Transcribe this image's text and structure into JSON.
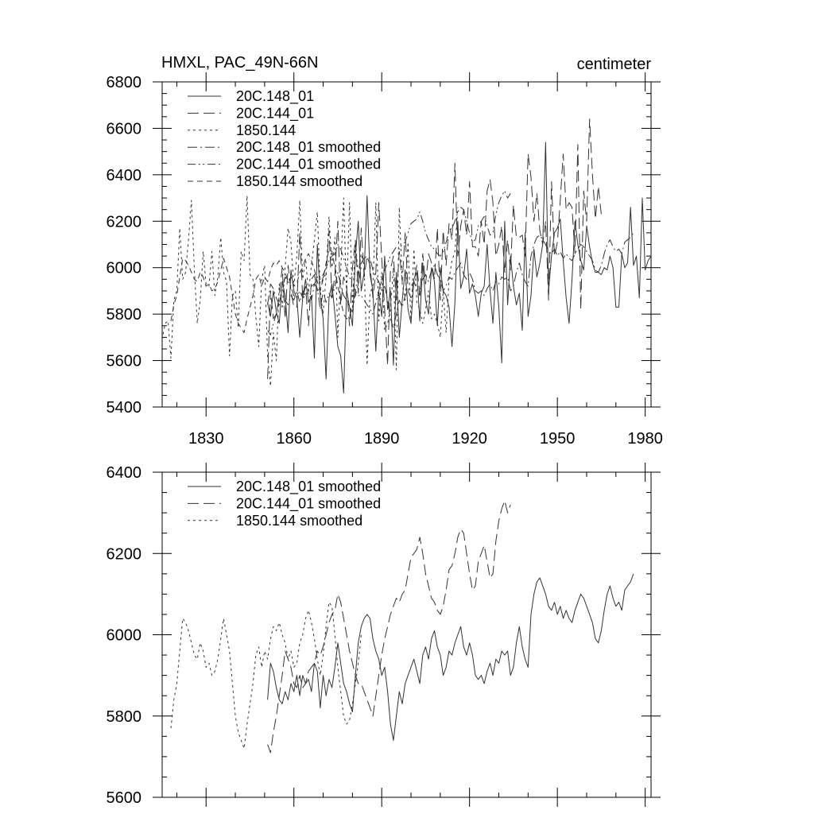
{
  "chart_data": [
    {
      "type": "line",
      "title_left": "HMXL, PAC_49N-66N",
      "title_right": "centimeter",
      "xlim": [
        1815,
        1982
      ],
      "ylim": [
        5400,
        6800
      ],
      "x_ticks": [
        1830,
        1860,
        1890,
        1920,
        1950,
        1980
      ],
      "x_tick_labels": [
        "1830",
        "1860",
        "1890",
        "1920",
        "1950",
        "1980"
      ],
      "x_minor_step": 10,
      "y_ticks": [
        5400,
        5600,
        5800,
        6000,
        6200,
        6400,
        6600,
        6800
      ],
      "y_tick_labels": [
        "5400",
        "5600",
        "5800",
        "6000",
        "6200",
        "6400",
        "6600",
        "6800"
      ],
      "y_minor_step": 50,
      "series": [
        {
          "name": "20C.148_01",
          "dash": "solid",
          "x_start": 1851,
          "values": [
            5850,
            5790,
            5900,
            5810,
            5760,
            5940,
            5880,
            5720,
            5990,
            5900,
            5870,
            5700,
            5870,
            5950,
            5850,
            5880,
            5610,
            6100,
            5870,
            5780,
            5520,
            5870,
            5930,
            5800,
            5660,
            5620,
            5460,
            5900,
            5830,
            5750,
            6050,
            6200,
            5900,
            5980,
            6310,
            5970,
            5900,
            5640,
            5900,
            5790,
            6050,
            5820,
            5900,
            5580,
            5980,
            5700,
            5860,
            5990,
            5820,
            5760,
            5950,
            5980,
            5770,
            6020,
            5860,
            5800,
            6000,
            5940,
            5750,
            6000,
            5900,
            5880,
            5830,
            5660,
            5850,
            6200,
            5910,
            5960,
            6080,
            5890,
            5930,
            5880,
            5790,
            5890,
            5920,
            6100,
            5900,
            5760,
            5980,
            5830,
            5590,
            6200,
            5840,
            6050,
            5920,
            5840,
            5890,
            5730,
            6150,
            5790,
            5880,
            6080,
            5960,
            6020,
            6100,
            6540,
            5900,
            6050,
            6150,
            6170,
            6210,
            6030,
            5870,
            5760,
            5950,
            6200,
            6100,
            6030,
            5990,
            6180,
            6090,
            6020,
            5980,
            5980,
            5970,
            6000,
            5990,
            6050,
            6000,
            5830,
            5830,
            6060,
            6000,
            6020,
            6260,
            6010,
            6050,
            5870,
            6300,
            5990,
            6030,
            6050,
            6310,
            6250
          ]
        },
        {
          "name": "20C.144_01",
          "dash": "long",
          "x_start": 1851,
          "values": [
            5520,
            5900,
            5780,
            5800,
            5880,
            6000,
            5780,
            6010,
            5900,
            5830,
            5830,
            6150,
            5870,
            5920,
            5750,
            5950,
            5970,
            5900,
            5910,
            5960,
            5970,
            6160,
            5870,
            5970,
            6200,
            5840,
            5960,
            5920,
            5750,
            6000,
            6120,
            5890,
            6170,
            5960,
            6050,
            6010,
            5870,
            5980,
            6280,
            6040,
            5820,
            5580,
            5990,
            6050,
            5860,
            6070,
            5940,
            6150,
            5900,
            5870,
            5940,
            6010,
            5880,
            6060,
            5930,
            6060,
            6020,
            5950,
            6170,
            5860,
            6160,
            6010,
            6190,
            6120,
            6450,
            6050,
            6180,
            6250,
            6140,
            6370,
            6090,
            6090,
            6050,
            6200,
            6100,
            6330,
            6380,
            6280,
            6050,
            6100,
            6180,
            5980,
            6120,
            5990,
            6270,
            6130,
            6130,
            6140,
            6050,
            6490,
            6390,
            6200,
            6320,
            6160,
            6100,
            6200,
            5860,
            6370,
            6050,
            6110,
            6290,
            6490,
            6250,
            6280,
            6260,
            6060,
            6530,
            5820,
            6330,
            6200,
            6640,
            6400,
            6210,
            6350,
            6230
          ]
        },
        {
          "name": "1850.144",
          "dash": "dot",
          "x_start": 1815,
          "values": [
            5690,
            5760,
            5770,
            5610,
            5860,
            5900,
            6170,
            5950,
            5980,
            6120,
            6290,
            5990,
            5760,
            5860,
            6070,
            5930,
            5920,
            6070,
            5880,
            5960,
            6130,
            5980,
            5940,
            5620,
            5880,
            5900,
            5740,
            6070,
            6030,
            6310,
            5970,
            5950,
            5790,
            5660,
            5950,
            6010,
            5620,
            5490,
            5720,
            5600,
            5930,
            5830,
            6000,
            6170,
            6110,
            5920,
            6050,
            6290,
            5950,
            6040,
            5890,
            6010,
            6120,
            6240,
            5900,
            5800,
            5960,
            6220,
            6000,
            6130,
            5700,
            5980,
            6300,
            5880,
            6280,
            5830,
            6110,
            5970,
            6060,
            6010,
            5580,
            5890,
            5920,
            6280,
            5770,
            5980,
            5730,
            5760,
            5820,
            6000,
            5560,
            6260,
            5930,
            5860,
            6110,
            5760,
            6080,
            5850,
            5820,
            5760,
            5820,
            5900,
            5780,
            5800,
            5760,
            5700,
            5900,
            5720,
            5950,
            6030,
            6070,
            6260
          ]
        },
        {
          "name": "20C.148_01 smoothed",
          "dash": "dashdot",
          "source": "20C.148_01 smoothed"
        },
        {
          "name": "20C.144_01 smoothed",
          "dash": "dashdotdot",
          "source": "20C.144_01 smoothed"
        },
        {
          "name": "1850.144 smoothed",
          "dash": "medium",
          "source": "1850.144 smoothed"
        }
      ]
    },
    {
      "type": "line",
      "xlim": [
        1815,
        1982
      ],
      "ylim": [
        5600,
        6400
      ],
      "x_ticks": [
        1830,
        1860,
        1890,
        1920,
        1950,
        1980
      ],
      "x_minor_step": 10,
      "y_ticks": [
        5600,
        5800,
        6000,
        6200,
        6400
      ],
      "y_tick_labels": [
        "5600",
        "5800",
        "6000",
        "6200",
        "6400"
      ],
      "y_minor_step": 50,
      "series": [
        {
          "name": "20C.148_01 smoothed",
          "dash": "solid",
          "x_start": 1851,
          "values": [
            5840,
            5930,
            5910,
            5870,
            5840,
            5830,
            5860,
            5840,
            5880,
            5860,
            5900,
            5850,
            5900,
            5880,
            5890,
            5860,
            5930,
            5910,
            5820,
            5900,
            5850,
            5890,
            5870,
            5920,
            5980,
            5930,
            5880,
            5860,
            5830,
            5810,
            5900,
            5980,
            6020,
            6040,
            6050,
            6040,
            5990,
            5960,
            5940,
            5900,
            5920,
            5860,
            5780,
            5740,
            5800,
            5860,
            5830,
            5880,
            5900,
            5920,
            5940,
            5910,
            5880,
            5950,
            5970,
            5940,
            5990,
            6010,
            5970,
            5950,
            5900,
            5920,
            5960,
            5950,
            5980,
            6000,
            6020,
            5970,
            5950,
            5980,
            5950,
            5900,
            5890,
            5900,
            5880,
            5910,
            5930,
            5900,
            5940,
            5930,
            5960,
            5950,
            5960,
            5900,
            5920,
            5980,
            6020,
            5970,
            5940,
            5920,
            6050,
            6100,
            6130,
            6140,
            6120,
            6100,
            6070,
            6060,
            6080,
            6050,
            6070,
            6040,
            6060,
            6040,
            6030,
            6060,
            6080,
            6100,
            6090,
            6070,
            6050,
            6030,
            5990,
            5980,
            6010,
            6060,
            6100,
            6120,
            6090,
            6070,
            6080,
            6060,
            6110,
            6120,
            6130,
            6150
          ]
        },
        {
          "name": "20C.144_01 smoothed",
          "dash": "long",
          "x_start": 1851,
          "values": [
            5730,
            5710,
            5760,
            5800,
            5850,
            5900,
            5960,
            5940,
            5920,
            5880,
            5870,
            5900,
            5870,
            5880,
            5910,
            5920,
            5930,
            5960,
            5950,
            5970,
            6000,
            6030,
            6050,
            6060,
            6100,
            6080,
            6040,
            6000,
            5960,
            5930,
            5900,
            5880,
            5880,
            5860,
            5840,
            5820,
            5800,
            5850,
            5900,
            5950,
            5990,
            6020,
            6050,
            6070,
            6090,
            6080,
            6100,
            6110,
            6150,
            6190,
            6200,
            6210,
            6240,
            6200,
            6150,
            6120,
            6090,
            6080,
            6060,
            6050,
            6070,
            6110,
            6160,
            6170,
            6200,
            6240,
            6260,
            6250,
            6200,
            6150,
            6110,
            6120,
            6180,
            6200,
            6220,
            6180,
            6140,
            6150,
            6230,
            6280,
            6310,
            6330,
            6300,
            6320
          ]
        },
        {
          "name": "1850.144 smoothed",
          "dash": "dot",
          "x_start": 1818,
          "values": [
            5770,
            5840,
            5880,
            5960,
            6040,
            6030,
            6010,
            5980,
            5950,
            5940,
            5980,
            5960,
            5920,
            5930,
            5900,
            5910,
            5940,
            5990,
            6040,
            6000,
            5960,
            5880,
            5800,
            5760,
            5740,
            5720,
            5780,
            5830,
            5880,
            5950,
            5970,
            5920,
            5960,
            5940,
            5990,
            6020,
            6010,
            6030,
            6000,
            5980,
            5940,
            5960,
            5920,
            5930,
            5980,
            6000,
            6040,
            6060,
            6030,
            5990,
            5940,
            5900,
            5950,
            6020,
            6080,
            6070,
            6000,
            5920,
            5860,
            5800,
            5780,
            5790,
            5830,
            5880,
            5930,
            6000
          ]
        }
      ]
    }
  ],
  "legend_top": [
    {
      "label": "20C.148_01",
      "dash": "solid"
    },
    {
      "label": "20C.144_01",
      "dash": "long"
    },
    {
      "label": "1850.144",
      "dash": "dot"
    },
    {
      "label": "20C.148_01 smoothed",
      "dash": "dashdot"
    },
    {
      "label": "20C.144_01 smoothed",
      "dash": "dashdotdot"
    },
    {
      "label": "1850.144 smoothed",
      "dash": "medium"
    }
  ],
  "legend_bottom": [
    {
      "label": "20C.148_01 smoothed",
      "dash": "solid"
    },
    {
      "label": "20C.144_01 smoothed",
      "dash": "long"
    },
    {
      "label": "1850.144 smoothed",
      "dash": "dot"
    }
  ],
  "colors": {
    "line": "#333333",
    "axis": "#000000",
    "background": "#ffffff"
  }
}
